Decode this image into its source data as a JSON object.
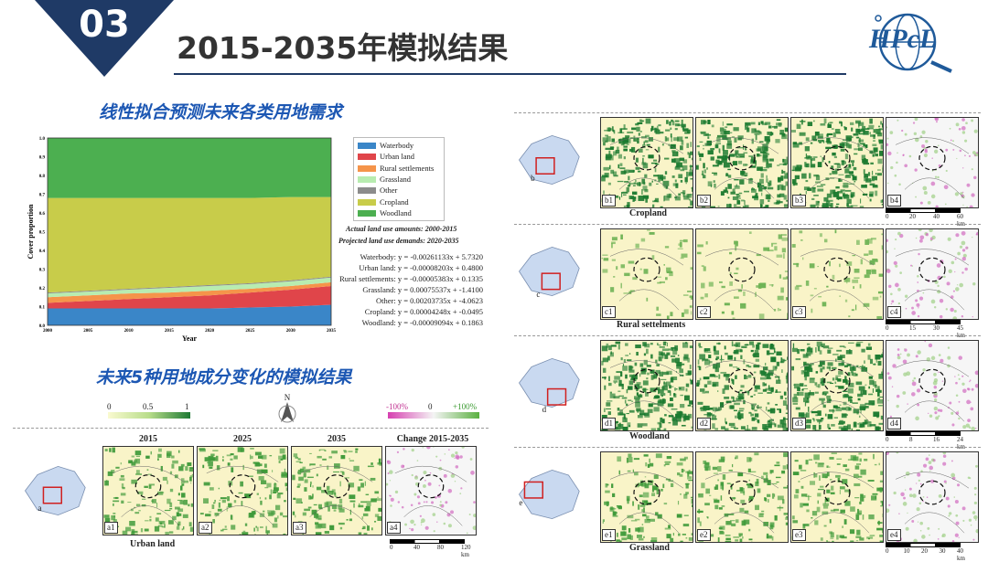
{
  "header": {
    "badge": "03",
    "title": "2015-2035年模拟结果",
    "logo": "HPcL"
  },
  "left": {
    "subtitle1": "线性拟合预测未来各类用地需求",
    "subtitle2": "未来5种用地成分变化的模拟结果"
  },
  "chart_data": {
    "type": "area",
    "x": [
      2000,
      2005,
      2010,
      2015,
      2020,
      2025,
      2030,
      2035
    ],
    "xlabel": "Year",
    "ylabel": "Cover proportion",
    "ylim": [
      0,
      1.0
    ],
    "yticks": [
      "0.0",
      "0.1",
      "0.2",
      "0.3",
      "0.4",
      "0.5",
      "0.6",
      "0.7",
      "0.8",
      "0.9",
      "1.0"
    ],
    "xticks": [
      "2000",
      "2005",
      "2010",
      "2015",
      "2020",
      "2025",
      "2030",
      "2035"
    ],
    "series": [
      {
        "name": "Waterbody",
        "color": "#3a86c8",
        "values": [
          0.09,
          0.09,
          0.09,
          0.09,
          0.09,
          0.095,
          0.1,
          0.11
        ]
      },
      {
        "name": "Urban land",
        "color": "#e0454a",
        "values": [
          0.03,
          0.04,
          0.05,
          0.06,
          0.07,
          0.08,
          0.09,
          0.1
        ]
      },
      {
        "name": "Rural settlements",
        "color": "#f5944a",
        "values": [
          0.03,
          0.03,
          0.03,
          0.025,
          0.025,
          0.02,
          0.02,
          0.02
        ]
      },
      {
        "name": "Grassland",
        "color": "#b8ecb0",
        "values": [
          0.02,
          0.02,
          0.02,
          0.025,
          0.025,
          0.025,
          0.025,
          0.025
        ]
      },
      {
        "name": "Other",
        "color": "#8c8c8c",
        "values": [
          0.005,
          0.005,
          0.005,
          0.005,
          0.005,
          0.005,
          0.005,
          0.005
        ]
      },
      {
        "name": "Cropland",
        "color": "#c8cc4a",
        "values": [
          0.505,
          0.495,
          0.485,
          0.475,
          0.465,
          0.455,
          0.445,
          0.425
        ]
      },
      {
        "name": "Woodland",
        "color": "#4caf50",
        "values": [
          0.32,
          0.32,
          0.32,
          0.32,
          0.32,
          0.32,
          0.315,
          0.315
        ]
      }
    ],
    "notes": [
      "Actual land use amounts:  2000-2015",
      "Projected land use demands: 2020-2035"
    ],
    "equations": [
      "Waterbody: y = -0.00261133x + 5.7320",
      "Urban land: y = -0.00008203x + 0.4800",
      "Rural settlements: y = -0.00005383x + 0.1335",
      "Grassland: y = 0.00075537x + -1.4100",
      "Other: y = 0.00203735x + -4.0623",
      "Cropland: y = 0.00004248x + -0.0495",
      "Woodland: y = -0.00009094x + 0.1863"
    ]
  },
  "scalebar": {
    "labels": [
      "0",
      "0.5",
      "1"
    ],
    "change_labels": [
      "-100%",
      "0",
      "+100%"
    ],
    "north": "N"
  },
  "urban": {
    "cols": [
      "2015",
      "2025",
      "2035",
      "Change 2015-2035"
    ],
    "panels": [
      "a1",
      "a2",
      "a3",
      "a4"
    ],
    "label": "Urban land",
    "map_tag": "a",
    "scale": [
      "0",
      "40",
      "80",
      "120 km"
    ]
  },
  "rows": [
    {
      "tag": "b",
      "panels": [
        "b1",
        "b2",
        "b3",
        "b4"
      ],
      "label": "Cropland",
      "scale": [
        "0",
        "20",
        "40",
        "60 km"
      ]
    },
    {
      "tag": "c",
      "panels": [
        "c1",
        "c2",
        "c3",
        "c4"
      ],
      "label": "Rural settelments",
      "scale": [
        "0",
        "15",
        "30",
        "45 km"
      ]
    },
    {
      "tag": "d",
      "panels": [
        "d1",
        "d2",
        "d3",
        "d4"
      ],
      "label": "Woodland",
      "scale": [
        "0",
        "8",
        "16",
        "24 km"
      ]
    },
    {
      "tag": "e",
      "panels": [
        "e1",
        "e2",
        "e3",
        "e4"
      ],
      "label": "Grassland",
      "scale": [
        "0",
        "10",
        "20",
        "30",
        "40 km"
      ]
    }
  ]
}
